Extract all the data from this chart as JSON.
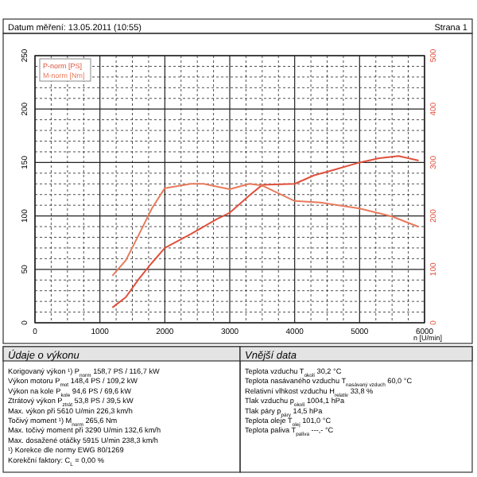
{
  "chart_data": [
    {
      "type": "line",
      "title": "Datum měření: 13.05.2011 (10:55)",
      "annotations": [
        "Strana 1"
      ],
      "xlabel": "n [U/min]",
      "xlim": [
        0,
        6000
      ],
      "ylim": [
        0,
        250
      ],
      "y2lim": [
        0,
        500
      ],
      "xticks": [
        0,
        {
          "value": 250,
          "label": null
        },
        {
          "value": 500,
          "label": null
        },
        {
          "value": 750,
          "label": null
        },
        1000,
        {
          "value": 1250,
          "label": null
        },
        {
          "value": 1500,
          "label": null
        },
        {
          "value": 1750,
          "label": null
        },
        2000,
        {
          "value": 2250,
          "label": null
        },
        {
          "value": 2500,
          "label": null
        },
        {
          "value": 2750,
          "label": null
        },
        3000,
        {
          "value": 3250,
          "label": null
        },
        {
          "value": 3500,
          "label": null
        },
        {
          "value": 3750,
          "label": null
        },
        4000,
        {
          "value": 4250,
          "label": null
        },
        {
          "value": 4500,
          "label": null
        },
        {
          "value": 4750,
          "label": null
        },
        5000,
        {
          "value": 5250,
          "label": null
        },
        {
          "value": 5500,
          "label": null
        },
        {
          "value": 5750,
          "label": null
        },
        6000
      ],
      "yticks": [
        0,
        {
          "value": 10,
          "label": null
        },
        {
          "value": 20,
          "label": null
        },
        {
          "value": 30,
          "label": null
        },
        {
          "value": 40,
          "label": null
        },
        50,
        {
          "value": 60,
          "label": null
        },
        {
          "value": 70,
          "label": null
        },
        {
          "value": 80,
          "label": null
        },
        {
          "value": 90,
          "label": null
        },
        100,
        {
          "value": 110,
          "label": null
        },
        {
          "value": 120,
          "label": null
        },
        {
          "value": 130,
          "label": null
        },
        {
          "value": 140,
          "label": null
        },
        150,
        {
          "value": 160,
          "label": null
        },
        {
          "value": 170,
          "label": null
        },
        {
          "value": 180,
          "label": null
        },
        {
          "value": 190,
          "label": null
        },
        200,
        {
          "value": 210,
          "label": null
        },
        {
          "value": 220,
          "label": null
        },
        {
          "value": 230,
          "label": null
        },
        {
          "value": 240,
          "label": null
        },
        250
      ],
      "y2ticks": [
        0,
        100,
        200,
        300,
        400,
        500
      ],
      "grid": true,
      "legend": "top left",
      "series": [
        {
          "name": "P-norm [PS]",
          "color": "#e0503c",
          "x": [
            1200,
            1400,
            1600,
            1800,
            2000,
            2400,
            2800,
            3000,
            3300,
            3500,
            4000,
            4300,
            4600,
            5000,
            5300,
            5600,
            5900
          ],
          "values": [
            14.6,
            24,
            41,
            56,
            70,
            83,
            97,
            103,
            119,
            129,
            130,
            138,
            143,
            150,
            154,
            156,
            152
          ]
        },
        {
          "name": "M-norm [Nm]",
          "color": "#e87a5c",
          "axis": "y2",
          "x": [
            1200,
            1400,
            1600,
            1800,
            2000,
            2400,
            2600,
            3000,
            3300,
            3500,
            4000,
            4400,
            5000,
            5500,
            5900
          ],
          "values": [
            89,
            117,
            165,
            214,
            252,
            260,
            260,
            250,
            260,
            257,
            228,
            225,
            214,
            199,
            180
          ]
        }
      ]
    },
    {
      "type": "other",
      "title": "Údaje o výkonu",
      "annotations": [
        "Korigovaný výkon ¹)   P$_{norm}$   158,7 PS / 116,7 kW",
        "Výkon motoru   P$_{mot}$   148,4 PS / 109,2 kW",
        "Výkon na kole   P$_{kole}$   94,6 PS / 69,6 kW",
        "Ztrátový výkon   P$_{ztrát}$   53,8 PS / 39,5 kW",
        "Max. výkon při   5610 U/min   226,3 km/h",
        "Točivý moment ¹)   M$_{norm}$   265,6 Nm",
        "Max. točivý moment při   3290 U/min   132,6 km/h",
        "Max. dosažené otáčky   5915 U/min   238,3 km/h",
        "¹) Korekce dle normy EWG 80/1269",
        "Korekční faktory: C$_{L}$ =  0,00 %"
      ]
    },
    {
      "type": "other",
      "title": "Vnější data",
      "annotations": [
        "Teplota vzduchu   T$_{okolí}$   30,2 °C",
        "Teplota nasávaného vzduchu   T$_{nasávaný vzduch}$   60,0 °C",
        "Relativní vlhkost vzduchu   H$_{relativ}$   33,8 %",
        "Tlak vzduchu   p$_{okolí}$   1004,1 hPa",
        "Tlak páry   p$_{páry}$   14,5 hPa",
        "Teplota oleje   T$_{olej}$   101,0 °C",
        "Teplota paliva   T$_{paliva}$   ---,- °C"
      ]
    }
  ]
}
